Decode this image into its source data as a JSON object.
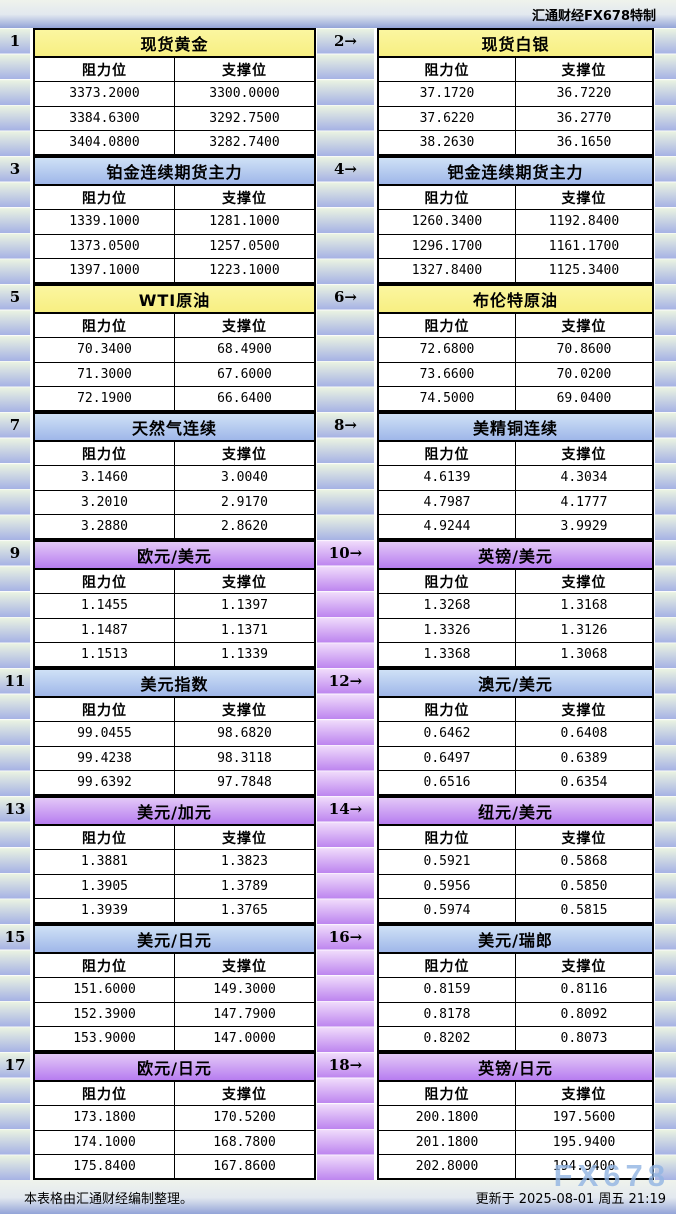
{
  "window_title": "汇通财经FX678特制",
  "watermark": "FX678",
  "labels": {
    "resistance": "阻力位",
    "support": "支撑位"
  },
  "footer": {
    "source_note": "本表格由汇通财经编制整理。",
    "updated": "更新于 2025-08-01 周五 21:19"
  },
  "colors": {
    "yellow_header": "#f7ef82",
    "blue_header_top": "#cfe1f6",
    "blue_header_bottom": "#9fb7e9",
    "purple_header_top": "#e3c8f7",
    "purple_header_bottom": "#b77df0",
    "strip_blue_top": "#e9f2e2",
    "strip_blue_bottom": "#a6b2e4",
    "strip_purple_top": "#efdafb",
    "strip_purple_bottom": "#bd85ef",
    "bar_gradient_bottom": "#93a4d8"
  },
  "panels": [
    {
      "label": "1",
      "name": "现货黄金",
      "theme": "yellow",
      "rows": [
        [
          "3373.2000",
          "3300.0000"
        ],
        [
          "3384.6300",
          "3292.7500"
        ],
        [
          "3404.0800",
          "3282.7400"
        ]
      ]
    },
    {
      "label": "2→",
      "name": "现货白银",
      "theme": "yellow",
      "rows": [
        [
          "37.1720",
          "36.7220"
        ],
        [
          "37.6220",
          "36.2770"
        ],
        [
          "38.2630",
          "36.1650"
        ]
      ]
    },
    {
      "label": "3",
      "name": "铂金连续期货主力",
      "theme": "blue",
      "rows": [
        [
          "1339.1000",
          "1281.1000"
        ],
        [
          "1373.0500",
          "1257.0500"
        ],
        [
          "1397.1000",
          "1223.1000"
        ]
      ]
    },
    {
      "label": "4→",
      "name": "钯金连续期货主力",
      "theme": "blue",
      "rows": [
        [
          "1260.3400",
          "1192.8400"
        ],
        [
          "1296.1700",
          "1161.1700"
        ],
        [
          "1327.8400",
          "1125.3400"
        ]
      ]
    },
    {
      "label": "5",
      "name": "WTI原油",
      "theme": "yellow",
      "rows": [
        [
          "70.3400",
          "68.4900"
        ],
        [
          "71.3000",
          "67.6000"
        ],
        [
          "72.1900",
          "66.6400"
        ]
      ]
    },
    {
      "label": "6→",
      "name": "布伦特原油",
      "theme": "yellow",
      "rows": [
        [
          "72.6800",
          "70.8600"
        ],
        [
          "73.6600",
          "70.0200"
        ],
        [
          "74.5000",
          "69.0400"
        ]
      ]
    },
    {
      "label": "7",
      "name": "天然气连续",
      "theme": "blue",
      "rows": [
        [
          "3.1460",
          "3.0040"
        ],
        [
          "3.2010",
          "2.9170"
        ],
        [
          "3.2880",
          "2.8620"
        ]
      ]
    },
    {
      "label": "8→",
      "name": "美精铜连续",
      "theme": "blue",
      "rows": [
        [
          "4.6139",
          "4.3034"
        ],
        [
          "4.7987",
          "4.1777"
        ],
        [
          "4.9244",
          "3.9929"
        ]
      ]
    },
    {
      "label": "9",
      "name": "欧元/美元",
      "theme": "purple",
      "rows": [
        [
          "1.1455",
          "1.1397"
        ],
        [
          "1.1487",
          "1.1371"
        ],
        [
          "1.1513",
          "1.1339"
        ]
      ]
    },
    {
      "label": "10→",
      "name": "英镑/美元",
      "theme": "purple",
      "rows": [
        [
          "1.3268",
          "1.3168"
        ],
        [
          "1.3326",
          "1.3126"
        ],
        [
          "1.3368",
          "1.3068"
        ]
      ]
    },
    {
      "label": "11",
      "name": "美元指数",
      "theme": "blue",
      "rows": [
        [
          "99.0455",
          "98.6820"
        ],
        [
          "99.4238",
          "98.3118"
        ],
        [
          "99.6392",
          "97.7848"
        ]
      ]
    },
    {
      "label": "12→",
      "name": "澳元/美元",
      "theme": "blue",
      "rows": [
        [
          "0.6462",
          "0.6408"
        ],
        [
          "0.6497",
          "0.6389"
        ],
        [
          "0.6516",
          "0.6354"
        ]
      ]
    },
    {
      "label": "13",
      "name": "美元/加元",
      "theme": "purple",
      "rows": [
        [
          "1.3881",
          "1.3823"
        ],
        [
          "1.3905",
          "1.3789"
        ],
        [
          "1.3939",
          "1.3765"
        ]
      ]
    },
    {
      "label": "14→",
      "name": "纽元/美元",
      "theme": "purple",
      "rows": [
        [
          "0.5921",
          "0.5868"
        ],
        [
          "0.5956",
          "0.5850"
        ],
        [
          "0.5974",
          "0.5815"
        ]
      ]
    },
    {
      "label": "15",
      "name": "美元/日元",
      "theme": "blue",
      "rows": [
        [
          "151.6000",
          "149.3000"
        ],
        [
          "152.3900",
          "147.7900"
        ],
        [
          "153.9000",
          "147.0000"
        ]
      ]
    },
    {
      "label": "16→",
      "name": "美元/瑞郎",
      "theme": "blue",
      "rows": [
        [
          "0.8159",
          "0.8116"
        ],
        [
          "0.8178",
          "0.8092"
        ],
        [
          "0.8202",
          "0.8073"
        ]
      ]
    },
    {
      "label": "17",
      "name": "欧元/日元",
      "theme": "purple",
      "rows": [
        [
          "173.1800",
          "170.5200"
        ],
        [
          "174.1000",
          "168.7800"
        ],
        [
          "175.8400",
          "167.8600"
        ]
      ]
    },
    {
      "label": "18→",
      "name": "英镑/日元",
      "theme": "purple",
      "rows": [
        [
          "200.1800",
          "197.5600"
        ],
        [
          "201.1800",
          "195.9400"
        ],
        [
          "202.8000",
          "194.9400"
        ]
      ]
    }
  ]
}
